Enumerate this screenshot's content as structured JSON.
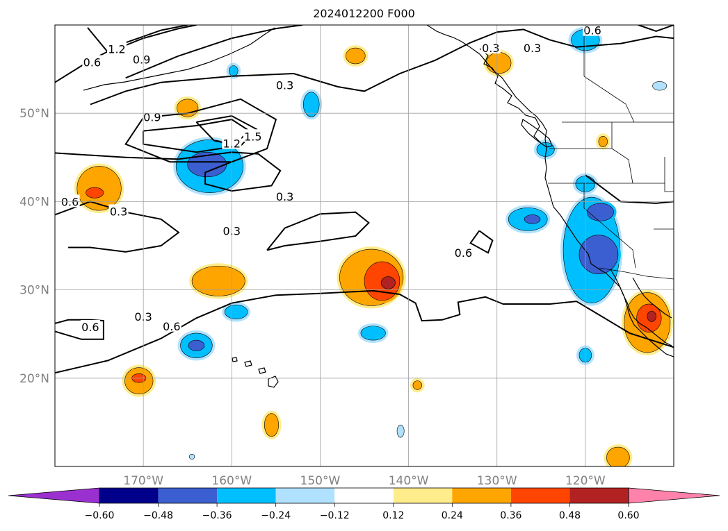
{
  "title": "2024012200 F000",
  "map": {
    "projection": "PlateCarree",
    "extent": {
      "lon_min": -180,
      "lon_max": -110,
      "lat_min": 10,
      "lat_max": 60
    },
    "grid": true,
    "lon_ticks": [
      {
        "lon": -170,
        "label": "170°W"
      },
      {
        "lon": -160,
        "label": "160°W"
      },
      {
        "lon": -150,
        "label": "150°W"
      },
      {
        "lon": -140,
        "label": "140°W"
      },
      {
        "lon": -130,
        "label": "130°W"
      },
      {
        "lon": -120,
        "label": "120°W"
      }
    ],
    "lat_ticks": [
      {
        "lat": 50,
        "label": "50°N"
      },
      {
        "lat": 40,
        "label": "40°N"
      },
      {
        "lat": 30,
        "label": "30°N"
      },
      {
        "lat": 20,
        "label": "20°N"
      }
    ],
    "contour_labels": [
      {
        "text": "1.2",
        "lon": -173.0,
        "lat": 57.3
      },
      {
        "text": "0.9",
        "lon": -170.2,
        "lat": 56.1
      },
      {
        "text": "0.6",
        "lon": -175.8,
        "lat": 55.8
      },
      {
        "text": "0.9",
        "lon": -169.0,
        "lat": 49.6
      },
      {
        "text": "1.5",
        "lon": -157.6,
        "lat": 47.4
      },
      {
        "text": "1.2",
        "lon": -160.0,
        "lat": 46.6
      },
      {
        "text": "0.3",
        "lon": -154.0,
        "lat": 40.6
      },
      {
        "text": "0.3",
        "lon": -172.8,
        "lat": 38.9
      },
      {
        "text": "0.6",
        "lon": -178.3,
        "lat": 40.0
      },
      {
        "text": "0.3",
        "lon": -160.0,
        "lat": 36.7
      },
      {
        "text": "0.3",
        "lon": -154.0,
        "lat": 53.2
      },
      {
        "text": "0.3",
        "lon": -130.7,
        "lat": 57.4
      },
      {
        "text": "0.3",
        "lon": -126.0,
        "lat": 57.4
      },
      {
        "text": "0.6",
        "lon": -119.2,
        "lat": 59.4
      },
      {
        "text": "0.6",
        "lon": -133.8,
        "lat": 34.2
      },
      {
        "text": "0.3",
        "lon": -170.0,
        "lat": 27.0
      },
      {
        "text": "0.6",
        "lon": -166.8,
        "lat": 25.9
      },
      {
        "text": "0.6",
        "lon": -176.0,
        "lat": 25.8
      }
    ],
    "contour_lines": [
      [
        [
          -180,
          53.5
        ],
        [
          -176,
          56
        ],
        [
          -172,
          58
        ],
        [
          -168,
          59.4
        ],
        [
          -165,
          60
        ]
      ],
      [
        [
          -176.3,
          59.7
        ],
        [
          -174,
          56.9
        ],
        [
          -170,
          58.5
        ],
        [
          -166,
          59.6
        ],
        [
          -164,
          60
        ]
      ],
      [
        [
          -172,
          54
        ],
        [
          -166,
          56.5
        ],
        [
          -160,
          58.5
        ],
        [
          -155,
          59.6
        ],
        [
          -152,
          60
        ]
      ],
      [
        [
          -176,
          51
        ],
        [
          -172,
          52.5
        ],
        [
          -168,
          53.5
        ],
        [
          -160,
          54.2
        ],
        [
          -153,
          54.5
        ],
        [
          -148,
          53
        ],
        [
          -145,
          52.5
        ],
        [
          -141,
          54.5
        ],
        [
          -137,
          56
        ],
        [
          -133,
          58
        ],
        [
          -130,
          59.2
        ],
        [
          -127,
          59.5
        ],
        [
          -124,
          58.3
        ],
        [
          -121,
          57.5
        ],
        [
          -116,
          57.9
        ],
        [
          -112,
          58.7
        ],
        [
          -110,
          58.5
        ]
      ],
      [
        [
          -114,
          60
        ],
        [
          -112,
          59.3
        ],
        [
          -110,
          60
        ]
      ],
      [
        [
          -170,
          48
        ],
        [
          -164,
          48.6
        ],
        [
          -160,
          49.3
        ],
        [
          -158,
          48
        ],
        [
          -160,
          46.2
        ],
        [
          -164,
          45.6
        ],
        [
          -170,
          46.5
        ],
        [
          -170,
          48
        ]
      ],
      [
        [
          -164,
          49
        ],
        [
          -160,
          49.7
        ],
        [
          -157.2,
          48.2
        ],
        [
          -159,
          46.3
        ],
        [
          -162,
          46.9
        ],
        [
          -164,
          49
        ]
      ],
      [
        [
          -165,
          50
        ],
        [
          -159,
          51.6
        ],
        [
          -155,
          49.3
        ],
        [
          -156,
          46
        ],
        [
          -160,
          44.5
        ],
        [
          -167,
          44.5
        ],
        [
          -172,
          46.5
        ],
        [
          -170,
          49.5
        ],
        [
          -165,
          50
        ]
      ],
      [
        [
          -180,
          45.5
        ],
        [
          -172,
          45
        ],
        [
          -166,
          44.8
        ],
        [
          -160,
          45.6
        ],
        [
          -157,
          45.4
        ],
        [
          -154.5,
          43.5
        ],
        [
          -155.5,
          41.8
        ],
        [
          -160,
          41.2
        ],
        [
          -163,
          42
        ],
        [
          -163,
          43.3
        ],
        [
          -160,
          44.5
        ]
      ],
      [
        [
          -180,
          38.5
        ],
        [
          -176,
          40
        ],
        [
          -172,
          38.8
        ],
        [
          -168,
          38
        ],
        [
          -166,
          36.5
        ],
        [
          -168,
          35
        ],
        [
          -172,
          34.3
        ],
        [
          -176,
          34.8
        ],
        [
          -178.5,
          34.8
        ]
      ],
      [
        [
          -156,
          34.5
        ],
        [
          -154,
          37
        ],
        [
          -150,
          38.6
        ],
        [
          -146,
          38.8
        ],
        [
          -144.5,
          37.6
        ],
        [
          -146,
          36.1
        ],
        [
          -150,
          35.5
        ],
        [
          -154,
          35
        ],
        [
          -156,
          34.5
        ]
      ],
      [
        [
          -132,
          36.7
        ],
        [
          -130.5,
          35.6
        ],
        [
          -131,
          34.2
        ],
        [
          -133,
          35.3
        ],
        [
          -132,
          36.7
        ]
      ],
      [
        [
          -180,
          20.6
        ],
        [
          -174,
          22
        ],
        [
          -168,
          24.5
        ],
        [
          -164,
          26.8
        ],
        [
          -160,
          28.5
        ],
        [
          -155,
          29.4
        ],
        [
          -150,
          29.6
        ],
        [
          -144,
          29.9
        ],
        [
          -141,
          29.5
        ],
        [
          -139.2,
          28.5
        ],
        [
          -138.5,
          26.5
        ],
        [
          -136.2,
          26.6
        ],
        [
          -134.2,
          27.2
        ],
        [
          -134.4,
          28.6
        ],
        [
          -131.3,
          29.2
        ],
        [
          -129.3,
          28.4
        ],
        [
          -124,
          28.4
        ],
        [
          -121,
          28.7
        ],
        [
          -118,
          26.9
        ],
        [
          -115,
          25.1
        ],
        [
          -110,
          23.5
        ]
      ],
      [
        [
          -180,
          26.2
        ],
        [
          -178.5,
          26.6
        ],
        [
          -176,
          26.6
        ],
        [
          -174.5,
          26.5
        ],
        [
          -174.5,
          24.4
        ],
        [
          -177,
          24.4
        ],
        [
          -180,
          25.3
        ]
      ],
      [
        [
          -120,
          43
        ],
        [
          -116,
          40
        ],
        [
          -112,
          39.8
        ],
        [
          -110,
          40
        ]
      ]
    ],
    "anomaly_patches": [
      {
        "lon": -162.5,
        "lat": 44.0,
        "rx": 3.8,
        "ry": 3.0,
        "level": -0.36
      },
      {
        "lon": -162.8,
        "lat": 44.2,
        "rx": 2.2,
        "ry": 1.4,
        "level": -0.48
      },
      {
        "lon": -175.0,
        "lat": 41.5,
        "rx": 2.5,
        "ry": 2.5,
        "level": 0.24
      },
      {
        "lon": -175.5,
        "lat": 41.0,
        "rx": 1.0,
        "ry": 0.6,
        "level": 0.36
      },
      {
        "lon": -165.0,
        "lat": 50.6,
        "rx": 1.2,
        "ry": 1.0,
        "level": 0.24
      },
      {
        "lon": -161.5,
        "lat": 31.0,
        "rx": 3.0,
        "ry": 1.7,
        "level": 0.24
      },
      {
        "lon": -159.5,
        "lat": 27.5,
        "rx": 1.3,
        "ry": 0.8,
        "level": -0.36
      },
      {
        "lon": -164.0,
        "lat": 23.7,
        "rx": 1.8,
        "ry": 1.4,
        "level": -0.36
      },
      {
        "lon": -164.0,
        "lat": 23.7,
        "rx": 0.9,
        "ry": 0.6,
        "level": -0.48
      },
      {
        "lon": -170.5,
        "lat": 19.7,
        "rx": 1.6,
        "ry": 1.5,
        "level": 0.24
      },
      {
        "lon": -170.5,
        "lat": 20.0,
        "rx": 0.8,
        "ry": 0.5,
        "level": 0.36
      },
      {
        "lon": -144.2,
        "lat": 31.4,
        "rx": 3.6,
        "ry": 3.2,
        "level": 0.24
      },
      {
        "lon": -143.0,
        "lat": 31.0,
        "rx": 2.0,
        "ry": 2.2,
        "level": 0.36
      },
      {
        "lon": -142.3,
        "lat": 30.8,
        "rx": 0.8,
        "ry": 0.7,
        "level": 0.48
      },
      {
        "lon": -144.0,
        "lat": 25.1,
        "rx": 1.4,
        "ry": 0.8,
        "level": -0.36
      },
      {
        "lon": -155.5,
        "lat": 14.7,
        "rx": 0.8,
        "ry": 1.3,
        "level": 0.24
      },
      {
        "lon": -146.0,
        "lat": 56.5,
        "rx": 1.1,
        "ry": 0.9,
        "level": 0.24
      },
      {
        "lon": -151.0,
        "lat": 51.0,
        "rx": 0.9,
        "ry": 1.4,
        "level": -0.36
      },
      {
        "lon": -129.8,
        "lat": 55.7,
        "rx": 1.4,
        "ry": 1.2,
        "level": 0.24
      },
      {
        "lon": -126.5,
        "lat": 38.0,
        "rx": 2.2,
        "ry": 1.3,
        "level": -0.36
      },
      {
        "lon": -126.0,
        "lat": 38.0,
        "rx": 0.9,
        "ry": 0.5,
        "level": -0.48
      },
      {
        "lon": -119.3,
        "lat": 34.5,
        "rx": 3.2,
        "ry": 6.0,
        "level": -0.36
      },
      {
        "lon": -118.5,
        "lat": 34.0,
        "rx": 2.2,
        "ry": 2.2,
        "level": -0.48
      },
      {
        "lon": -118.3,
        "lat": 38.8,
        "rx": 1.5,
        "ry": 1.0,
        "level": -0.48
      },
      {
        "lon": -120.0,
        "lat": 42.0,
        "rx": 1.1,
        "ry": 0.9,
        "level": -0.36
      },
      {
        "lon": -113.0,
        "lat": 26.3,
        "rx": 2.6,
        "ry": 3.4,
        "level": 0.24
      },
      {
        "lon": -112.8,
        "lat": 26.8,
        "rx": 1.4,
        "ry": 1.6,
        "level": 0.36
      },
      {
        "lon": -112.5,
        "lat": 27.0,
        "rx": 0.5,
        "ry": 0.6,
        "level": 0.48
      },
      {
        "lon": -116.3,
        "lat": 11.0,
        "rx": 1.3,
        "ry": 1.2,
        "level": 0.24
      },
      {
        "lon": -120.0,
        "lat": 22.6,
        "rx": 0.7,
        "ry": 0.8,
        "level": -0.36
      },
      {
        "lon": -124.5,
        "lat": 45.9,
        "rx": 1.0,
        "ry": 0.8,
        "level": -0.36
      },
      {
        "lon": -120.0,
        "lat": 58.3,
        "rx": 1.6,
        "ry": 1.2,
        "level": -0.36
      },
      {
        "lon": -139.0,
        "lat": 19.2,
        "rx": 0.5,
        "ry": 0.5,
        "level": 0.24
      },
      {
        "lon": -140.9,
        "lat": 14.0,
        "rx": 0.4,
        "ry": 0.7,
        "level": -0.24
      },
      {
        "lon": -159.8,
        "lat": 54.8,
        "rx": 0.5,
        "ry": 0.6,
        "level": -0.36
      },
      {
        "lon": -164.5,
        "lat": 11.1,
        "rx": 0.3,
        "ry": 0.3,
        "level": -0.24
      },
      {
        "lon": -118.0,
        "lat": 46.8,
        "rx": 0.5,
        "ry": 0.6,
        "level": 0.24
      },
      {
        "lon": -111.6,
        "lat": 53.1,
        "rx": 0.8,
        "ry": 0.5,
        "level": -0.24
      }
    ]
  },
  "colorbar": {
    "extend": "both",
    "levels": [
      -0.6,
      -0.48,
      -0.36,
      -0.24,
      -0.12,
      0.12,
      0.24,
      0.36,
      0.48,
      0.6
    ],
    "labels": [
      "−0.60",
      "−0.48",
      "−0.36",
      "−0.24",
      "−0.12",
      "0.12",
      "0.24",
      "0.36",
      "0.48",
      "0.60"
    ],
    "colors": {
      "under": "#9b30d0",
      "-0.6": "#00008b",
      "-0.48": "#3b5fd0",
      "-0.36": "#00bfff",
      "-0.24": "#b0e2ff",
      "-0.12": "#ffffff",
      "0.12": "#ffec8b",
      "0.24": "#ffa500",
      "0.36": "#ff4500",
      "0.48": "#b22222",
      "over": "#ff82ab"
    }
  }
}
